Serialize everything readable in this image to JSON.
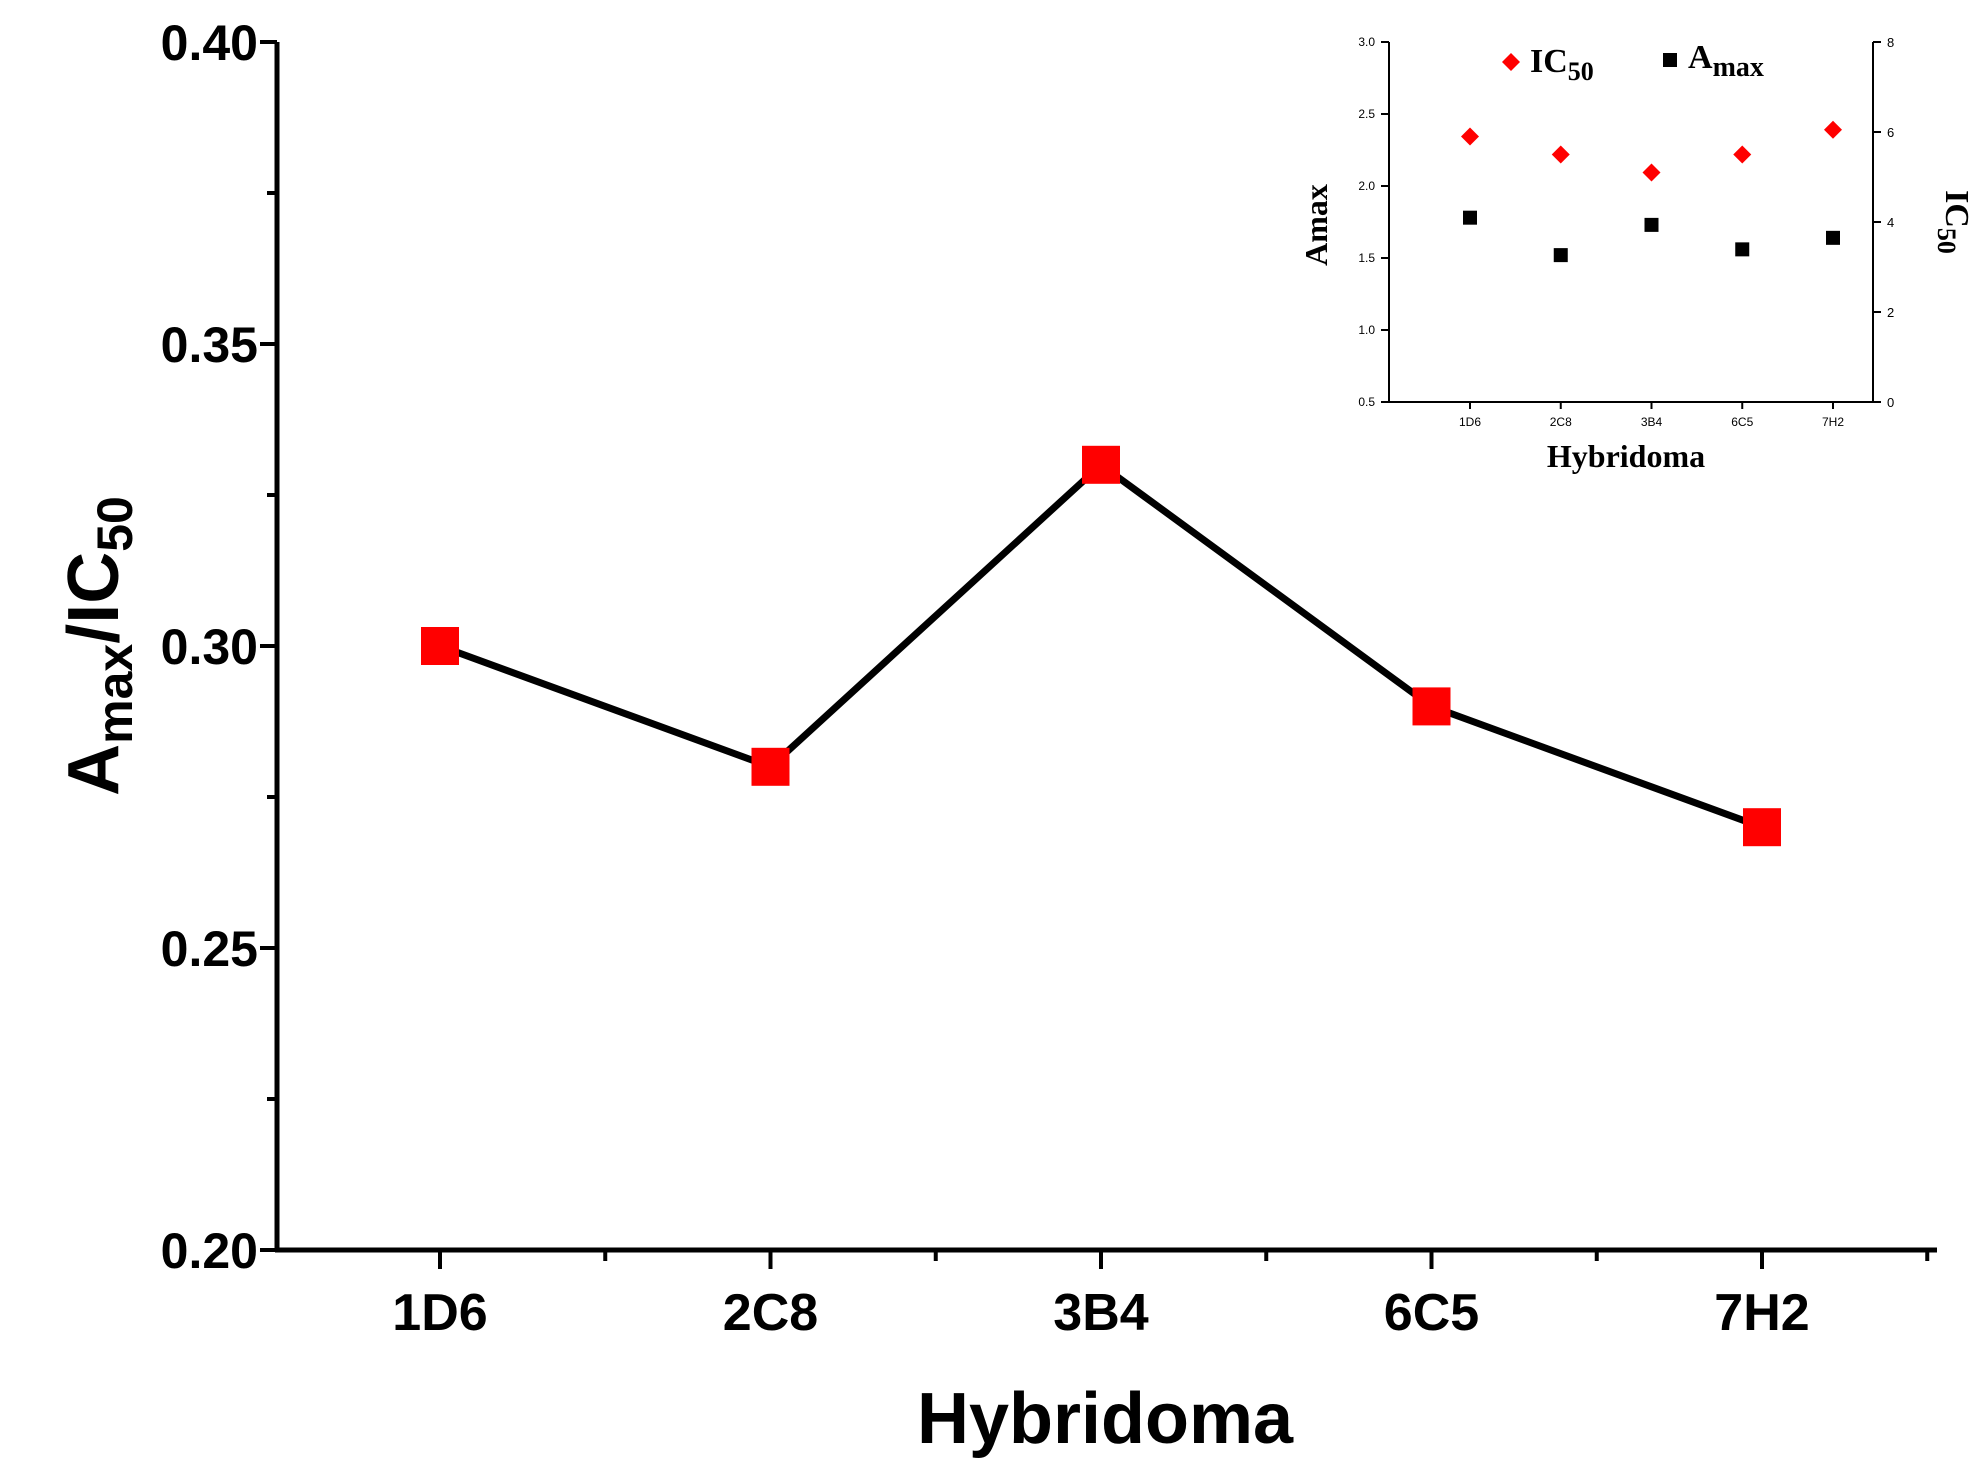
{
  "chart_data": [
    {
      "type": "line",
      "xlabel": "Hybridoma",
      "ylabel": {
        "main": "A",
        "sub": "max",
        "sep": "/IC",
        "sub2": "50"
      },
      "categories": [
        "1D6",
        "2C8",
        "3B4",
        "6C5",
        "7H2"
      ],
      "series": [
        {
          "name": "Amax/IC50",
          "values": [
            0.3,
            0.28,
            0.33,
            0.29,
            0.27
          ],
          "marker": "square",
          "marker_color": "#ff0000",
          "line_color": "#000000"
        }
      ],
      "ylim": [
        0.2,
        0.4
      ],
      "yticks": [
        "0.20",
        "0.25",
        "0.30",
        "0.35",
        "0.40"
      ]
    },
    {
      "type": "scatter",
      "role": "inset",
      "xlabel": "Hybridoma",
      "ylabel_left": "Amax",
      "ylabel_right": {
        "main": "IC",
        "sub": "50"
      },
      "categories": [
        "1D6",
        "2C8",
        "3B4",
        "6C5",
        "7H2"
      ],
      "ylim_left": [
        0.5,
        3.0
      ],
      "yticks_left": [
        "0.5",
        "1.0",
        "1.5",
        "2.0",
        "2.5",
        "3.0"
      ],
      "ylim_right": [
        0,
        8
      ],
      "yticks_right": [
        "0",
        "2",
        "4",
        "6",
        "8"
      ],
      "legend": [
        {
          "main": "IC",
          "sub": "50",
          "marker": "diamond",
          "color": "#ff0000"
        },
        {
          "main": "A",
          "sub": "max",
          "marker": "square",
          "color": "#000000"
        }
      ],
      "series": [
        {
          "name": "IC50",
          "axis": "right",
          "marker": "diamond",
          "color": "#ff0000",
          "values": [
            5.9,
            5.5,
            5.1,
            5.5,
            6.05
          ]
        },
        {
          "name": "Amax",
          "axis": "left",
          "marker": "square",
          "color": "#000000",
          "values": [
            1.78,
            1.52,
            1.73,
            1.56,
            1.64
          ]
        }
      ]
    }
  ]
}
